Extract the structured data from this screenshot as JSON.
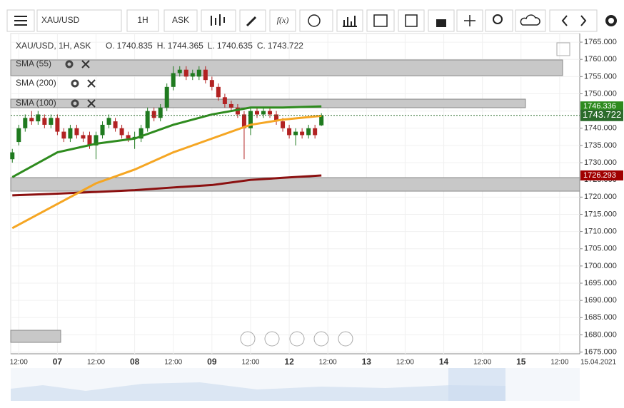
{
  "toolbar": {
    "symbol": "XAU/USD",
    "timeframe": "1H",
    "price_type": "ASK",
    "function_button": "f(x)"
  },
  "chart_data": {
    "type": "candlestick",
    "header": {
      "label": "XAU/USD, 1H, ASK",
      "ohlc": [
        {
          "key": "O.",
          "value": "1740.835"
        },
        {
          "key": "H.",
          "value": "1744.365"
        },
        {
          "key": "L.",
          "value": "1740.635"
        },
        {
          "key": "C.",
          "value": "1743.722"
        }
      ]
    },
    "ylim": [
      1674.5,
      1767.5
    ],
    "yticks": [
      {
        "value": 1765,
        "label": "1765.000"
      },
      {
        "value": 1760,
        "label": "1760.000"
      },
      {
        "value": 1755,
        "label": "1755.000"
      },
      {
        "value": 1750,
        "label": "1750.000"
      },
      {
        "value": 1745,
        "label": "1745.000"
      },
      {
        "value": 1740,
        "label": "1740.000"
      },
      {
        "value": 1735,
        "label": "1735.000"
      },
      {
        "value": 1730,
        "label": "1730.000"
      },
      {
        "value": 1725,
        "label": "1725.000"
      },
      {
        "value": 1720,
        "label": "1720.000"
      },
      {
        "value": 1715,
        "label": "1715.000"
      },
      {
        "value": 1710,
        "label": "1710.000"
      },
      {
        "value": 1705,
        "label": "1705.000"
      },
      {
        "value": 1700,
        "label": "1700.000"
      },
      {
        "value": 1695,
        "label": "1695.000"
      },
      {
        "value": 1690,
        "label": "1690.000"
      },
      {
        "value": 1685,
        "label": "1685.000"
      },
      {
        "value": 1680,
        "label": "1680.000"
      },
      {
        "value": 1675,
        "label": "1675.000"
      }
    ],
    "xlim": [
      -14.5,
      168
    ],
    "xticks": [
      {
        "value": -12,
        "label": "12:00"
      },
      {
        "value": 0,
        "label": "07"
      },
      {
        "value": 12,
        "label": "12:00"
      },
      {
        "value": 24,
        "label": "08"
      },
      {
        "value": 36,
        "label": "12:00"
      },
      {
        "value": 48,
        "label": "09"
      },
      {
        "value": 60,
        "label": "12:00"
      },
      {
        "value": 72,
        "label": "12"
      },
      {
        "value": 84,
        "label": "12:00"
      },
      {
        "value": 96,
        "label": "13"
      },
      {
        "value": 108,
        "label": "12:00"
      },
      {
        "value": 120,
        "label": "14"
      },
      {
        "value": 132,
        "label": "12:00"
      },
      {
        "value": 144,
        "label": "15"
      },
      {
        "value": 156,
        "label": "12:00"
      },
      {
        "value": 168,
        "label": "15.04.2021"
      }
    ],
    "grid": true,
    "up_color": "#1f7a1f",
    "down_color": "#b22222",
    "candles": {
      "x": [
        -14,
        -12,
        -10,
        -8,
        -6,
        -4,
        -2,
        0,
        2,
        4,
        6,
        8,
        10,
        12,
        14,
        16,
        18,
        20,
        22,
        24,
        26,
        28,
        30,
        32,
        34,
        36,
        38,
        40,
        42,
        44,
        46,
        48,
        50,
        52,
        54,
        56,
        58,
        60,
        62,
        64,
        66,
        68,
        70,
        72,
        74,
        76,
        78,
        80,
        82
      ],
      "open": [
        1731,
        1736,
        1740,
        1743,
        1742,
        1743,
        1741,
        1743,
        1739,
        1737,
        1740,
        1738,
        1738,
        1735,
        1738,
        1741,
        1742,
        1740,
        1738,
        1737,
        1737,
        1740,
        1745,
        1743,
        1746,
        1752,
        1756,
        1757,
        1755,
        1755,
        1757,
        1754,
        1752,
        1749,
        1747,
        1746,
        1744,
        1740,
        1745,
        1744,
        1745,
        1744,
        1742,
        1740,
        1738,
        1739,
        1738,
        1740,
        1740.835
      ],
      "high": [
        1734,
        1741,
        1744,
        1745,
        1745,
        1744,
        1744,
        1744,
        1740,
        1741,
        1741,
        1739,
        1739,
        1739,
        1742,
        1744,
        1743,
        1741,
        1739,
        1739,
        1741,
        1746,
        1746,
        1747,
        1753,
        1758,
        1758,
        1758,
        1757,
        1758,
        1758,
        1755,
        1753,
        1750,
        1748,
        1747,
        1745,
        1746,
        1746,
        1746,
        1746,
        1745,
        1743,
        1741,
        1740,
        1740,
        1741,
        1741,
        1744.365
      ],
      "low": [
        1730,
        1735,
        1739,
        1741,
        1741,
        1740,
        1740,
        1738,
        1736,
        1736,
        1737,
        1736,
        1734,
        1731,
        1737,
        1740,
        1739,
        1737,
        1736,
        1734,
        1736,
        1739,
        1742,
        1742,
        1745,
        1751,
        1755,
        1754,
        1754,
        1754,
        1753,
        1751,
        1748,
        1746,
        1745,
        1743,
        1731,
        1738,
        1743,
        1743,
        1743,
        1741,
        1739,
        1737,
        1735,
        1737,
        1737,
        1737,
        1740.635
      ],
      "close": [
        1733,
        1740,
        1743,
        1742,
        1744,
        1741,
        1743,
        1739,
        1737,
        1740,
        1738,
        1737,
        1735,
        1738,
        1741,
        1743,
        1740,
        1738,
        1737,
        1737.5,
        1740,
        1745,
        1743,
        1746,
        1752,
        1756,
        1757,
        1755,
        1756,
        1757,
        1754,
        1752,
        1749,
        1747,
        1746,
        1744,
        1740,
        1745,
        1744,
        1745,
        1744,
        1742,
        1740,
        1738,
        1739,
        1738,
        1740,
        1738,
        1743.722
      ]
    },
    "sma_x": [
      -14,
      0,
      12,
      24,
      36,
      48,
      60,
      70,
      82
    ],
    "series": [
      {
        "name": "SMA (55)",
        "color": "#2e8b1e",
        "values": [
          1725.8,
          1733,
          1735.5,
          1737,
          1741,
          1744,
          1746,
          1746,
          1746.336
        ],
        "tag_color": "#2e8b1e"
      },
      {
        "name": "SMA (200)",
        "color": "#8b1010",
        "values": [
          1720.5,
          1721,
          1721.5,
          1722,
          1722.8,
          1723.5,
          1725,
          1725.6,
          1726.293
        ],
        "tag_color": "#a00000"
      },
      {
        "name": "SMA (100)",
        "color": "#f5a623",
        "values": [
          1711,
          1718,
          1724,
          1728,
          1733,
          1737,
          1741,
          1742.5,
          1743.6
        ]
      }
    ],
    "last_price_color": "#2b6b2b"
  }
}
